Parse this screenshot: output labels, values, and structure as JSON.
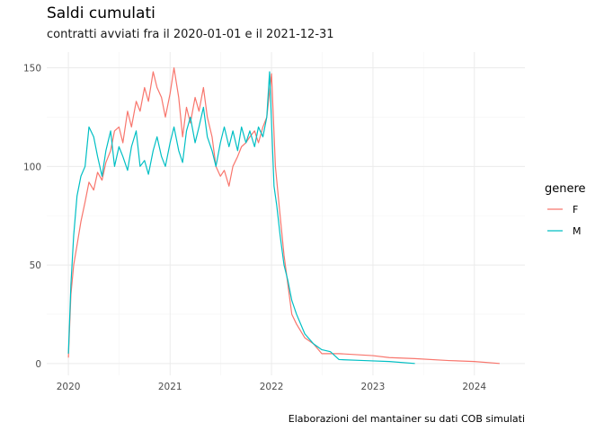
{
  "chart_data": {
    "type": "line",
    "title": "Saldi cumulati",
    "subtitle": "contratti avviati fra il 2020-01-01 e il 2021-12-31",
    "caption": "Elaborazioni del mantainer su dati COB simulati",
    "xlabel": "",
    "ylabel": "",
    "xlim": [
      "2019-10-15",
      "2024-07-01"
    ],
    "ylim": [
      -6,
      158
    ],
    "x_ticks": [
      {
        "date": "2020-01-01",
        "label": "2020"
      },
      {
        "date": "2021-01-01",
        "label": "2021"
      },
      {
        "date": "2022-01-01",
        "label": "2022"
      },
      {
        "date": "2023-01-01",
        "label": "2023"
      },
      {
        "date": "2024-01-01",
        "label": "2024"
      }
    ],
    "y_ticks": [
      0,
      50,
      100,
      150
    ],
    "grid": true,
    "legend": {
      "title": "genere",
      "position": "right"
    },
    "series": [
      {
        "name": "F",
        "color": "#F8766D",
        "points": [
          [
            "2020-01-01",
            3
          ],
          [
            "2020-01-10",
            35
          ],
          [
            "2020-01-20",
            50
          ],
          [
            "2020-02-01",
            60
          ],
          [
            "2020-02-15",
            72
          ],
          [
            "2020-03-01",
            82
          ],
          [
            "2020-03-15",
            92
          ],
          [
            "2020-04-01",
            88
          ],
          [
            "2020-04-15",
            97
          ],
          [
            "2020-05-01",
            93
          ],
          [
            "2020-05-15",
            102
          ],
          [
            "2020-06-01",
            108
          ],
          [
            "2020-06-15",
            118
          ],
          [
            "2020-07-01",
            120
          ],
          [
            "2020-07-15",
            112
          ],
          [
            "2020-08-01",
            128
          ],
          [
            "2020-08-15",
            120
          ],
          [
            "2020-09-01",
            133
          ],
          [
            "2020-09-15",
            128
          ],
          [
            "2020-10-01",
            140
          ],
          [
            "2020-10-15",
            133
          ],
          [
            "2020-11-01",
            148
          ],
          [
            "2020-11-15",
            140
          ],
          [
            "2020-12-01",
            135
          ],
          [
            "2020-12-15",
            125
          ],
          [
            "2021-01-01",
            137
          ],
          [
            "2021-01-15",
            150
          ],
          [
            "2021-02-01",
            135
          ],
          [
            "2021-02-15",
            115
          ],
          [
            "2021-03-01",
            130
          ],
          [
            "2021-03-15",
            122
          ],
          [
            "2021-04-01",
            135
          ],
          [
            "2021-04-15",
            128
          ],
          [
            "2021-05-01",
            140
          ],
          [
            "2021-05-15",
            125
          ],
          [
            "2021-06-01",
            115
          ],
          [
            "2021-06-15",
            100
          ],
          [
            "2021-07-01",
            95
          ],
          [
            "2021-07-15",
            98
          ],
          [
            "2021-08-01",
            90
          ],
          [
            "2021-08-15",
            100
          ],
          [
            "2021-09-01",
            105
          ],
          [
            "2021-09-15",
            110
          ],
          [
            "2021-10-01",
            112
          ],
          [
            "2021-10-15",
            115
          ],
          [
            "2021-11-01",
            118
          ],
          [
            "2021-11-15",
            112
          ],
          [
            "2021-12-01",
            120
          ],
          [
            "2021-12-15",
            125
          ],
          [
            "2022-01-01",
            147
          ],
          [
            "2022-01-15",
            100
          ],
          [
            "2022-02-01",
            75
          ],
          [
            "2022-02-15",
            55
          ],
          [
            "2022-03-01",
            40
          ],
          [
            "2022-03-15",
            25
          ],
          [
            "2022-04-01",
            20
          ],
          [
            "2022-05-01",
            13
          ],
          [
            "2022-06-01",
            10
          ],
          [
            "2022-07-01",
            5
          ],
          [
            "2022-09-01",
            5
          ],
          [
            "2023-01-01",
            4
          ],
          [
            "2023-03-01",
            3
          ],
          [
            "2023-06-01",
            2.5
          ],
          [
            "2023-10-01",
            1.5
          ],
          [
            "2024-01-01",
            1
          ],
          [
            "2024-04-01",
            0
          ]
        ]
      },
      {
        "name": "M",
        "color": "#00BFC4",
        "points": [
          [
            "2020-01-01",
            5
          ],
          [
            "2020-01-10",
            40
          ],
          [
            "2020-01-20",
            65
          ],
          [
            "2020-02-01",
            85
          ],
          [
            "2020-02-15",
            95
          ],
          [
            "2020-03-01",
            100
          ],
          [
            "2020-03-15",
            120
          ],
          [
            "2020-04-01",
            115
          ],
          [
            "2020-04-15",
            105
          ],
          [
            "2020-05-01",
            95
          ],
          [
            "2020-05-15",
            108
          ],
          [
            "2020-06-01",
            118
          ],
          [
            "2020-06-15",
            100
          ],
          [
            "2020-07-01",
            110
          ],
          [
            "2020-07-15",
            105
          ],
          [
            "2020-08-01",
            98
          ],
          [
            "2020-08-15",
            110
          ],
          [
            "2020-09-01",
            118
          ],
          [
            "2020-09-15",
            100
          ],
          [
            "2020-10-01",
            103
          ],
          [
            "2020-10-15",
            96
          ],
          [
            "2020-11-01",
            108
          ],
          [
            "2020-11-15",
            115
          ],
          [
            "2020-12-01",
            105
          ],
          [
            "2020-12-15",
            100
          ],
          [
            "2021-01-01",
            112
          ],
          [
            "2021-01-15",
            120
          ],
          [
            "2021-02-01",
            108
          ],
          [
            "2021-02-15",
            102
          ],
          [
            "2021-03-01",
            118
          ],
          [
            "2021-03-15",
            125
          ],
          [
            "2021-04-01",
            112
          ],
          [
            "2021-04-15",
            120
          ],
          [
            "2021-05-01",
            130
          ],
          [
            "2021-05-15",
            115
          ],
          [
            "2021-06-01",
            108
          ],
          [
            "2021-06-15",
            100
          ],
          [
            "2021-07-01",
            112
          ],
          [
            "2021-07-15",
            120
          ],
          [
            "2021-08-01",
            110
          ],
          [
            "2021-08-15",
            118
          ],
          [
            "2021-09-01",
            108
          ],
          [
            "2021-09-15",
            120
          ],
          [
            "2021-10-01",
            112
          ],
          [
            "2021-10-15",
            118
          ],
          [
            "2021-11-01",
            110
          ],
          [
            "2021-11-15",
            120
          ],
          [
            "2021-12-01",
            115
          ],
          [
            "2021-12-15",
            125
          ],
          [
            "2021-12-25",
            148
          ],
          [
            "2022-01-10",
            90
          ],
          [
            "2022-01-20",
            80
          ],
          [
            "2022-02-01",
            65
          ],
          [
            "2022-02-15",
            50
          ],
          [
            "2022-03-01",
            42
          ],
          [
            "2022-03-15",
            32
          ],
          [
            "2022-04-01",
            25
          ],
          [
            "2022-05-01",
            15
          ],
          [
            "2022-06-01",
            10
          ],
          [
            "2022-07-01",
            7
          ],
          [
            "2022-08-01",
            6
          ],
          [
            "2022-09-01",
            2
          ],
          [
            "2022-12-01",
            1.5
          ],
          [
            "2023-03-01",
            1
          ],
          [
            "2023-06-01",
            0
          ]
        ]
      }
    ]
  }
}
